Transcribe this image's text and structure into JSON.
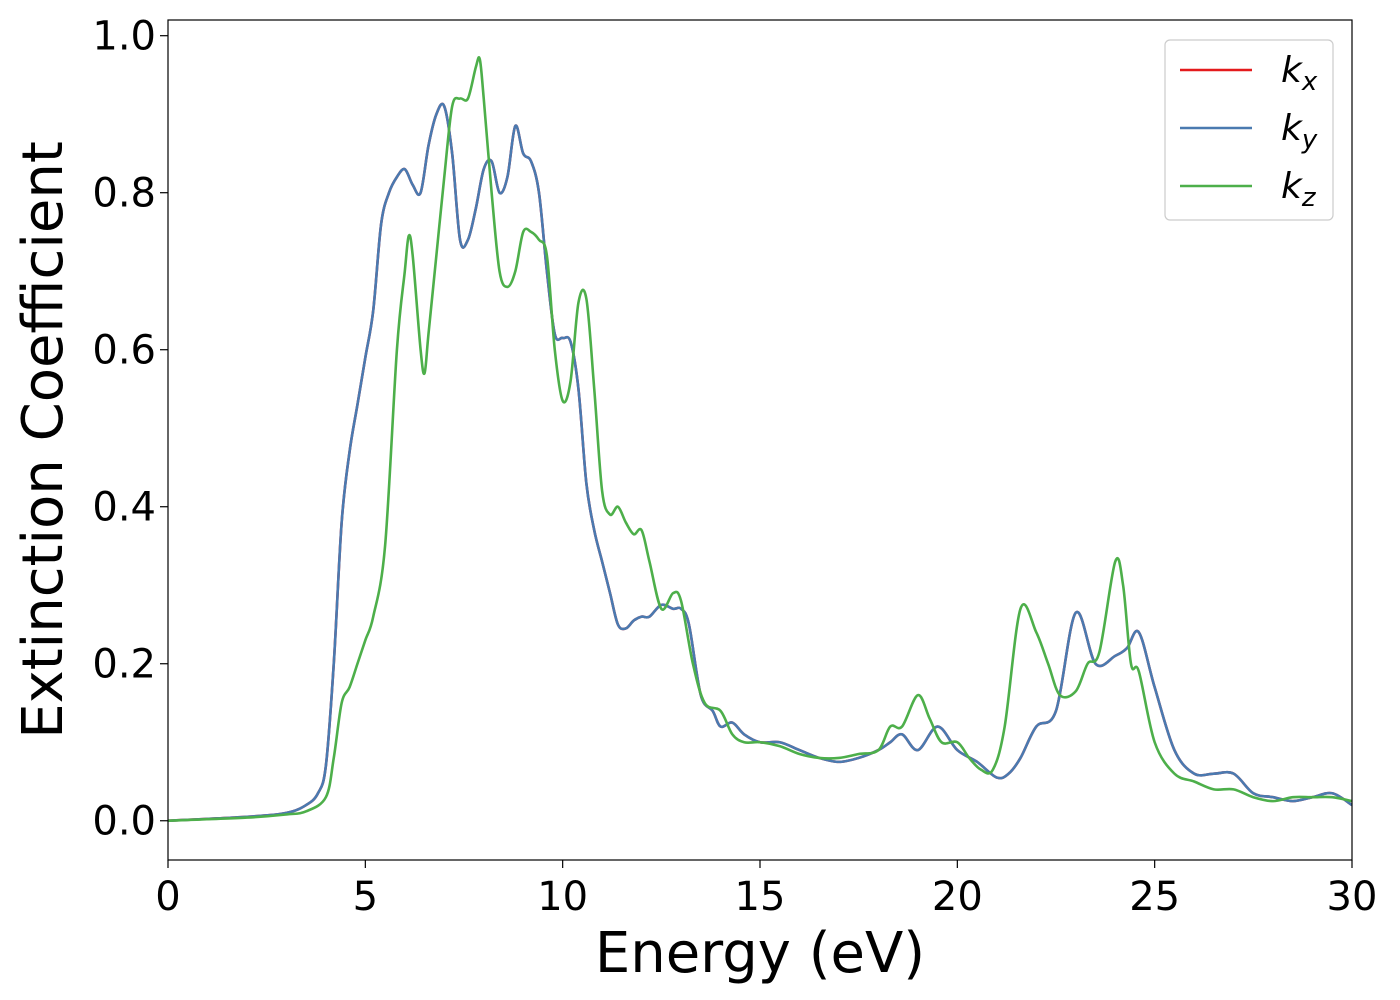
{
  "chart_data": {
    "type": "line",
    "xlabel": "Energy (eV)",
    "ylabel": "Extinction Coefficient",
    "xlim": [
      0,
      30
    ],
    "ylim": [
      -0.05,
      1.02
    ],
    "xticks": [
      0,
      5,
      10,
      15,
      20,
      25,
      30
    ],
    "xtick_labels": [
      "0",
      "5",
      "10",
      "15",
      "20",
      "25",
      "30"
    ],
    "yticks": [
      0.0,
      0.2,
      0.4,
      0.6,
      0.8,
      1.0
    ],
    "ytick_labels": [
      "0.0",
      "0.2",
      "0.4",
      "0.6",
      "0.8",
      "1.0"
    ],
    "grid": false,
    "legend_position": "top-right",
    "series": [
      {
        "name_main": "k",
        "name_sub": "x",
        "color": "#e41a1c",
        "x": [
          0,
          2,
          3,
          3.5,
          3.8,
          4.0,
          4.2,
          4.4,
          4.6,
          4.8,
          5.0,
          5.2,
          5.4,
          5.6,
          5.8,
          6.0,
          6.2,
          6.4,
          6.6,
          6.8,
          7.0,
          7.2,
          7.4,
          7.6,
          7.8,
          8.0,
          8.2,
          8.4,
          8.6,
          8.8,
          9.0,
          9.2,
          9.4,
          9.6,
          9.8,
          10.0,
          10.2,
          10.4,
          10.6,
          10.8,
          11.0,
          11.2,
          11.4,
          11.6,
          11.8,
          12.0,
          12.2,
          12.5,
          12.8,
          13.0,
          13.2,
          13.5,
          13.8,
          14.0,
          14.3,
          14.6,
          15.0,
          15.5,
          16.0,
          16.5,
          17.0,
          17.5,
          18.0,
          18.3,
          18.6,
          19.0,
          19.5,
          20.0,
          20.5,
          21.0,
          21.3,
          21.6,
          22.0,
          22.5,
          23.0,
          23.5,
          24.0,
          24.3,
          24.6,
          25.0,
          25.5,
          26.0,
          26.5,
          27.0,
          27.5,
          28.0,
          28.5,
          29.0,
          29.5,
          30.0
        ],
        "y": [
          0.0,
          0.005,
          0.01,
          0.02,
          0.035,
          0.07,
          0.2,
          0.38,
          0.47,
          0.53,
          0.59,
          0.65,
          0.76,
          0.8,
          0.82,
          0.83,
          0.81,
          0.8,
          0.86,
          0.9,
          0.91,
          0.85,
          0.74,
          0.74,
          0.78,
          0.83,
          0.84,
          0.8,
          0.82,
          0.885,
          0.85,
          0.84,
          0.8,
          0.7,
          0.62,
          0.615,
          0.61,
          0.55,
          0.43,
          0.37,
          0.33,
          0.29,
          0.25,
          0.245,
          0.255,
          0.26,
          0.26,
          0.275,
          0.27,
          0.27,
          0.25,
          0.16,
          0.14,
          0.12,
          0.125,
          0.11,
          0.1,
          0.1,
          0.09,
          0.08,
          0.075,
          0.08,
          0.09,
          0.1,
          0.11,
          0.09,
          0.12,
          0.09,
          0.075,
          0.055,
          0.06,
          0.08,
          0.12,
          0.14,
          0.265,
          0.2,
          0.21,
          0.22,
          0.24,
          0.17,
          0.09,
          0.06,
          0.06,
          0.06,
          0.035,
          0.03,
          0.025,
          0.03,
          0.035,
          0.02
        ]
      },
      {
        "name_main": "k",
        "name_sub": "y",
        "color": "#4a7ab0",
        "x": [
          0,
          2,
          3,
          3.5,
          3.8,
          4.0,
          4.2,
          4.4,
          4.6,
          4.8,
          5.0,
          5.2,
          5.4,
          5.6,
          5.8,
          6.0,
          6.2,
          6.4,
          6.6,
          6.8,
          7.0,
          7.2,
          7.4,
          7.6,
          7.8,
          8.0,
          8.2,
          8.4,
          8.6,
          8.8,
          9.0,
          9.2,
          9.4,
          9.6,
          9.8,
          10.0,
          10.2,
          10.4,
          10.6,
          10.8,
          11.0,
          11.2,
          11.4,
          11.6,
          11.8,
          12.0,
          12.2,
          12.5,
          12.8,
          13.0,
          13.2,
          13.5,
          13.8,
          14.0,
          14.3,
          14.6,
          15.0,
          15.5,
          16.0,
          16.5,
          17.0,
          17.5,
          18.0,
          18.3,
          18.6,
          19.0,
          19.5,
          20.0,
          20.5,
          21.0,
          21.3,
          21.6,
          22.0,
          22.5,
          23.0,
          23.5,
          24.0,
          24.3,
          24.6,
          25.0,
          25.5,
          26.0,
          26.5,
          27.0,
          27.5,
          28.0,
          28.5,
          29.0,
          29.5,
          30.0
        ],
        "y": [
          0.0,
          0.005,
          0.01,
          0.02,
          0.035,
          0.07,
          0.2,
          0.38,
          0.47,
          0.53,
          0.59,
          0.65,
          0.76,
          0.8,
          0.82,
          0.83,
          0.81,
          0.8,
          0.86,
          0.9,
          0.91,
          0.85,
          0.74,
          0.74,
          0.78,
          0.83,
          0.84,
          0.8,
          0.82,
          0.885,
          0.85,
          0.84,
          0.8,
          0.7,
          0.62,
          0.615,
          0.61,
          0.55,
          0.43,
          0.37,
          0.33,
          0.29,
          0.25,
          0.245,
          0.255,
          0.26,
          0.26,
          0.275,
          0.27,
          0.27,
          0.25,
          0.16,
          0.14,
          0.12,
          0.125,
          0.11,
          0.1,
          0.1,
          0.09,
          0.08,
          0.075,
          0.08,
          0.09,
          0.1,
          0.11,
          0.09,
          0.12,
          0.09,
          0.075,
          0.055,
          0.06,
          0.08,
          0.12,
          0.14,
          0.265,
          0.2,
          0.21,
          0.22,
          0.24,
          0.17,
          0.09,
          0.06,
          0.06,
          0.06,
          0.035,
          0.03,
          0.025,
          0.03,
          0.035,
          0.02
        ]
      },
      {
        "name_main": "k",
        "name_sub": "z",
        "color": "#4daf4a",
        "x": [
          0,
          2,
          3,
          3.5,
          4.0,
          4.2,
          4.4,
          4.6,
          4.8,
          5.0,
          5.2,
          5.5,
          5.8,
          6.0,
          6.1,
          6.2,
          6.4,
          6.5,
          6.6,
          6.8,
          7.0,
          7.2,
          7.4,
          7.6,
          7.8,
          7.9,
          8.0,
          8.2,
          8.4,
          8.6,
          8.8,
          9.0,
          9.2,
          9.4,
          9.6,
          9.8,
          10.0,
          10.2,
          10.4,
          10.6,
          10.8,
          11.0,
          11.2,
          11.4,
          11.6,
          11.8,
          12.0,
          12.2,
          12.5,
          12.8,
          13.0,
          13.3,
          13.6,
          14.0,
          14.3,
          14.6,
          15.0,
          15.5,
          16.0,
          16.5,
          17.0,
          17.5,
          18.0,
          18.3,
          18.6,
          19.0,
          19.3,
          19.6,
          20.0,
          20.3,
          20.6,
          20.9,
          21.2,
          21.6,
          22.0,
          22.3,
          22.6,
          23.0,
          23.3,
          23.6,
          24.0,
          24.2,
          24.4,
          24.6,
          25.0,
          25.5,
          26.0,
          26.5,
          27.0,
          27.5,
          28.0,
          28.5,
          29.0,
          29.5,
          30.0
        ],
        "y": [
          0.0,
          0.004,
          0.008,
          0.012,
          0.03,
          0.08,
          0.15,
          0.17,
          0.2,
          0.23,
          0.26,
          0.35,
          0.6,
          0.7,
          0.745,
          0.72,
          0.6,
          0.57,
          0.62,
          0.72,
          0.82,
          0.91,
          0.92,
          0.92,
          0.96,
          0.97,
          0.92,
          0.8,
          0.7,
          0.68,
          0.7,
          0.75,
          0.75,
          0.74,
          0.72,
          0.6,
          0.535,
          0.56,
          0.66,
          0.665,
          0.55,
          0.42,
          0.39,
          0.4,
          0.38,
          0.365,
          0.37,
          0.33,
          0.27,
          0.29,
          0.28,
          0.2,
          0.15,
          0.14,
          0.11,
          0.1,
          0.1,
          0.095,
          0.085,
          0.08,
          0.08,
          0.085,
          0.09,
          0.12,
          0.12,
          0.16,
          0.13,
          0.1,
          0.1,
          0.08,
          0.065,
          0.065,
          0.12,
          0.27,
          0.24,
          0.2,
          0.16,
          0.165,
          0.2,
          0.215,
          0.33,
          0.3,
          0.2,
          0.19,
          0.1,
          0.06,
          0.05,
          0.04,
          0.04,
          0.03,
          0.025,
          0.03,
          0.03,
          0.03,
          0.025
        ]
      }
    ]
  }
}
